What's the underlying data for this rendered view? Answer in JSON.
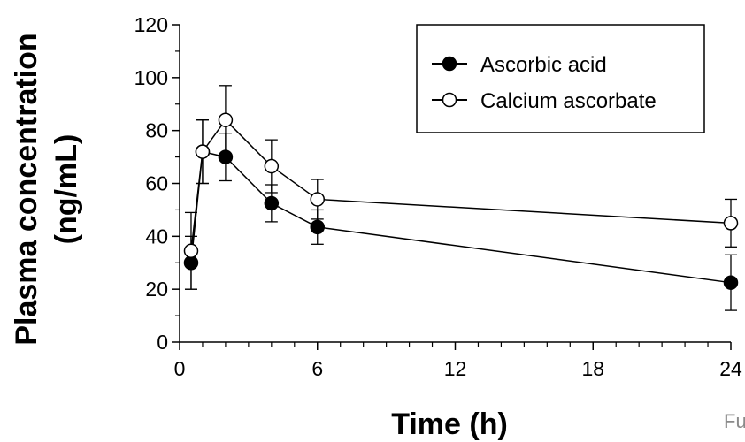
{
  "chart_data": {
    "type": "line",
    "xlabel": "Time (h)",
    "ylabel_line1": "Plasma concentration",
    "ylabel_line2": "(ng/mL)",
    "xlim": [
      0,
      24
    ],
    "ylim": [
      0,
      120
    ],
    "xticks": [
      0,
      6,
      12,
      18,
      24
    ],
    "xticks_minor": [
      1,
      2,
      3,
      4,
      5,
      7,
      8,
      9,
      10,
      11,
      13,
      14,
      15,
      16,
      17,
      19,
      20,
      21,
      22,
      23
    ],
    "yticks": [
      0,
      20,
      40,
      60,
      80,
      100,
      120
    ],
    "yticks_minor": [
      10,
      30,
      50,
      70,
      90,
      110
    ],
    "grid": false,
    "legend_position": "top-right",
    "series": [
      {
        "name": "Ascorbic acid",
        "marker": "filled-circle",
        "color": "#000000",
        "x": [
          0.5,
          1,
          2,
          4,
          6,
          24
        ],
        "y": [
          30,
          72,
          70,
          52.5,
          43.5,
          22.5
        ],
        "error": [
          10,
          12,
          9,
          7,
          6.5,
          10.5
        ]
      },
      {
        "name": "Calcium ascorbate",
        "marker": "open-circle",
        "color": "#000000",
        "x": [
          0.5,
          1,
          2,
          4,
          6,
          24
        ],
        "y": [
          34.5,
          72,
          84,
          66.5,
          54,
          45
        ],
        "error": [
          14.5,
          12,
          13,
          10,
          7.5,
          9
        ]
      }
    ]
  },
  "footnote": "Fu"
}
